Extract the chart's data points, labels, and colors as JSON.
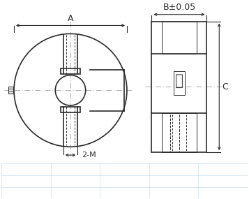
{
  "bg_color": "#ffffff",
  "line_color": "#2a2a2a",
  "dim_color": "#2a2a2a",
  "dash_color": "#aaaaaa",
  "grid_color": "#c8dff0",
  "label_A": "A",
  "label_B": "B±0.05",
  "label_C": "C",
  "label_2M": "2-M",
  "grid_rows": 4,
  "grid_cols": 5
}
